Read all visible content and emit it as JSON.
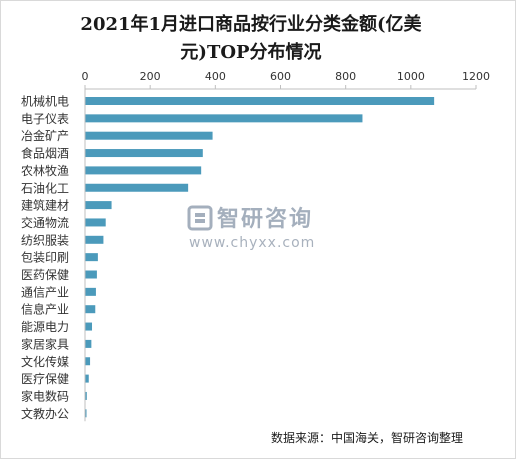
{
  "chart_data": {
    "type": "bar",
    "orientation": "horizontal",
    "title": "2021年1月进口商品按行业分类金额(亿美元)TOP分布情况",
    "categories": [
      "机械机电",
      "电子仪表",
      "冶金矿产",
      "食品烟酒",
      "农林牧渔",
      "石油化工",
      "建筑建材",
      "交通物流",
      "纺织服装",
      "包装印刷",
      "医药保健",
      "通信产业",
      "信息产业",
      "能源电力",
      "家居家具",
      "文化传媒",
      "医疗保健",
      "家电数码",
      "文教办公"
    ],
    "values": [
      1070,
      850,
      390,
      360,
      355,
      315,
      80,
      62,
      55,
      38,
      35,
      32,
      30,
      20,
      18,
      14,
      10,
      4,
      3
    ],
    "xlim": [
      0,
      1200
    ],
    "xticks": [
      0,
      200,
      400,
      600,
      800,
      1000,
      1200
    ],
    "x_axis_position": "top",
    "grid": false,
    "legend": "none",
    "bar_color": "#4b9abb",
    "xlabel": "",
    "ylabel": ""
  },
  "watermark": {
    "name": "智研咨询",
    "url": "www.chyxx.com",
    "color": "#5a6e87"
  },
  "source_note": "数据来源：中国海关，智研咨询整理"
}
